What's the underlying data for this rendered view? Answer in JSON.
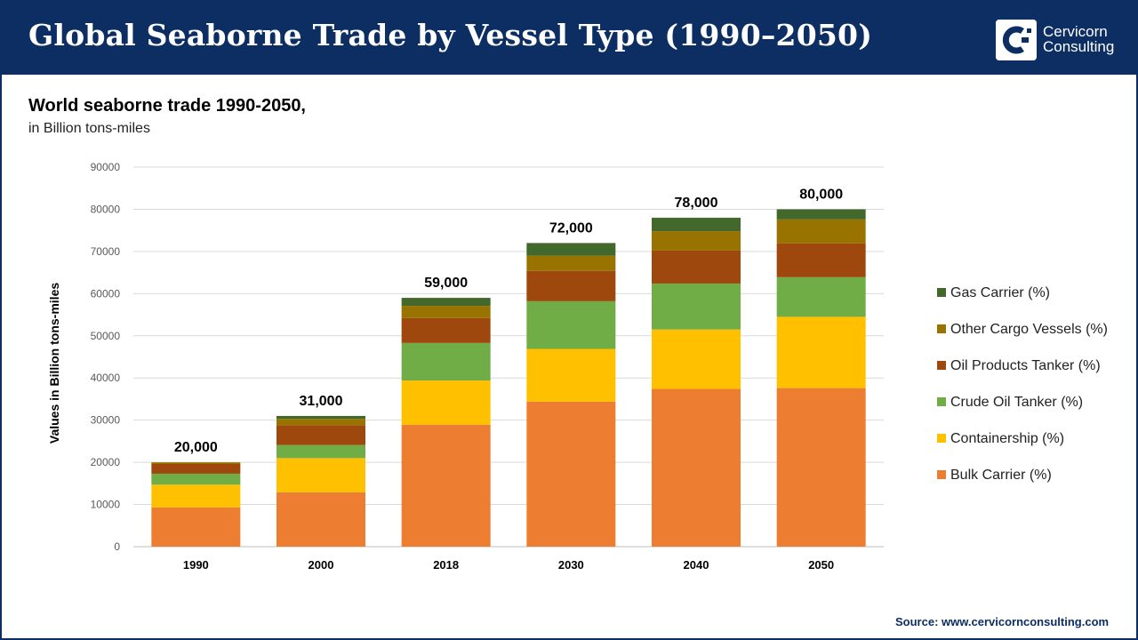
{
  "header": {
    "title": "Global Seaborne Trade by Vessel Type (1990–2050)",
    "logo_line1": "Cervicorn",
    "logo_line2": "Consulting"
  },
  "subtitle": "World seaborne trade 1990-2050,",
  "unit_note": "in Billion tons-miles",
  "source": "Source: www.cervicornconsulting.com",
  "colors": {
    "header_bg": "#0c2e63",
    "Bulk Carrier (%)": "#ed7d31",
    "Containership (%)": "#ffc000",
    "Crude Oil Tanker (%)": "#70ad47",
    "Oil Products Tanker (%)": "#9e480e",
    "Other Cargo Vessels (%)": "#997300",
    "Gas Carrier (%)": "#43682b"
  },
  "chart_data": {
    "type": "bar",
    "stacked": true,
    "categories": [
      "1990",
      "2000",
      "2018",
      "2030",
      "2040",
      "2050"
    ],
    "ylabel": "Values in Billion tons-miles",
    "ylim": [
      0,
      90000
    ],
    "yticks": [
      0,
      10000,
      20000,
      30000,
      40000,
      50000,
      60000,
      70000,
      80000,
      90000
    ],
    "grid": true,
    "legend_position": "right",
    "series": [
      {
        "name": "Bulk Carrier (%)",
        "values": [
          9300,
          12900,
          28900,
          34400,
          37400,
          37600
        ]
      },
      {
        "name": "Containership (%)",
        "values": [
          5400,
          8100,
          10500,
          12500,
          14100,
          16900
        ]
      },
      {
        "name": "Crude Oil Tanker (%)",
        "values": [
          2600,
          3100,
          8900,
          11300,
          10900,
          9400
        ]
      },
      {
        "name": "Oil Products Tanker (%)",
        "values": [
          2300,
          4700,
          5900,
          7200,
          7800,
          8000
        ]
      },
      {
        "name": "Other Cargo Vessels (%)",
        "values": [
          400,
          1500,
          2900,
          3600,
          4600,
          5700
        ]
      },
      {
        "name": "Gas Carrier (%)",
        "values": [
          0,
          700,
          1900,
          3000,
          3200,
          2400
        ]
      }
    ],
    "totals": [
      20000,
      31000,
      59000,
      72000,
      78000,
      80000
    ],
    "total_labels": [
      "20,000",
      "31,000",
      "59,000",
      "72,000",
      "78,000",
      "80,000"
    ]
  }
}
